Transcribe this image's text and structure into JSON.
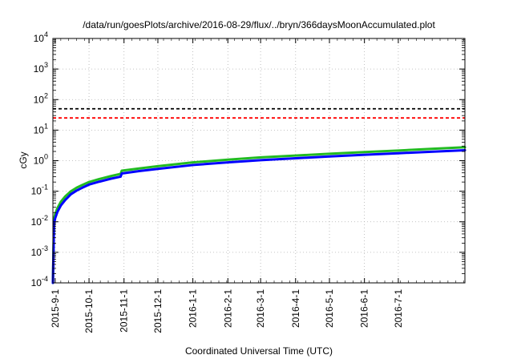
{
  "chart_data": {
    "type": "line",
    "title": "/data/run/goesPlots/archive/2016-08-29/flux/../bryn/366daysMoonAccumulated.plot",
    "xlabel": "Coordinated Universal Time (UTC)",
    "ylabel": "cGy",
    "y_scale": "log",
    "ylim": [
      0.0001,
      10000
    ],
    "y_ticks": [
      {
        "value": 0.0001,
        "base": "10",
        "exp": "-4"
      },
      {
        "value": 0.001,
        "base": "10",
        "exp": "-3"
      },
      {
        "value": 0.01,
        "base": "10",
        "exp": "-2"
      },
      {
        "value": 0.1,
        "base": "10",
        "exp": "-1"
      },
      {
        "value": 1,
        "base": "10",
        "exp": "0"
      },
      {
        "value": 10,
        "base": "10",
        "exp": "1"
      },
      {
        "value": 100,
        "base": "10",
        "exp": "2"
      },
      {
        "value": 1000,
        "base": "10",
        "exp": "3"
      },
      {
        "value": 10000,
        "base": "10",
        "exp": "4"
      }
    ],
    "xlim": [
      "2015-08-30",
      "2016-08-29"
    ],
    "x_ticks": [
      "2015-9-1",
      "2015-10-1",
      "2015-11-1",
      "2015-12-1",
      "2016-1-1",
      "2016-2-1",
      "2016-3-1",
      "2016-4-1",
      "2016-5-1",
      "2016-6-1",
      "2016-7-1"
    ],
    "grid": true,
    "reference_lines": [
      {
        "value": 50,
        "color": "#000000",
        "style": "dashed"
      },
      {
        "value": 25,
        "color": "#ff0000",
        "style": "dashed"
      }
    ],
    "series": [
      {
        "color": "#22bb22",
        "x": [
          "2015-08-30",
          "2015-08-31",
          "2015-09-01",
          "2015-09-03",
          "2015-09-06",
          "2015-09-10",
          "2015-09-15",
          "2015-09-20",
          "2015-09-25",
          "2015-10-01",
          "2015-10-10",
          "2015-10-20",
          "2015-10-29",
          "2015-10-30",
          "2015-11-15",
          "2015-12-01",
          "2016-01-01",
          "2016-02-01",
          "2016-03-01",
          "2016-04-01",
          "2016-05-01",
          "2016-06-01",
          "2016-07-01",
          "2016-08-01",
          "2016-08-29"
        ],
        "y": [
          0.0001,
          0.012,
          0.018,
          0.028,
          0.045,
          0.068,
          0.1,
          0.13,
          0.16,
          0.2,
          0.25,
          0.31,
          0.37,
          0.47,
          0.56,
          0.66,
          0.88,
          1.08,
          1.28,
          1.47,
          1.68,
          1.92,
          2.15,
          2.45,
          2.75
        ]
      },
      {
        "color": "#0000ff",
        "x": [
          "2015-08-30",
          "2015-08-31",
          "2015-09-01",
          "2015-09-03",
          "2015-09-06",
          "2015-09-10",
          "2015-09-15",
          "2015-09-20",
          "2015-09-25",
          "2015-10-01",
          "2015-10-10",
          "2015-10-20",
          "2015-10-29",
          "2015-10-30",
          "2015-11-15",
          "2015-12-01",
          "2016-01-01",
          "2016-02-01",
          "2016-03-01",
          "2016-04-01",
          "2016-05-01",
          "2016-06-01",
          "2016-07-01",
          "2016-08-01",
          "2016-08-29"
        ],
        "y": [
          0.0001,
          0.0085,
          0.013,
          0.021,
          0.034,
          0.052,
          0.08,
          0.105,
          0.13,
          0.165,
          0.205,
          0.255,
          0.3,
          0.38,
          0.46,
          0.54,
          0.72,
          0.88,
          1.04,
          1.2,
          1.37,
          1.56,
          1.75,
          1.98,
          2.2
        ]
      }
    ]
  }
}
